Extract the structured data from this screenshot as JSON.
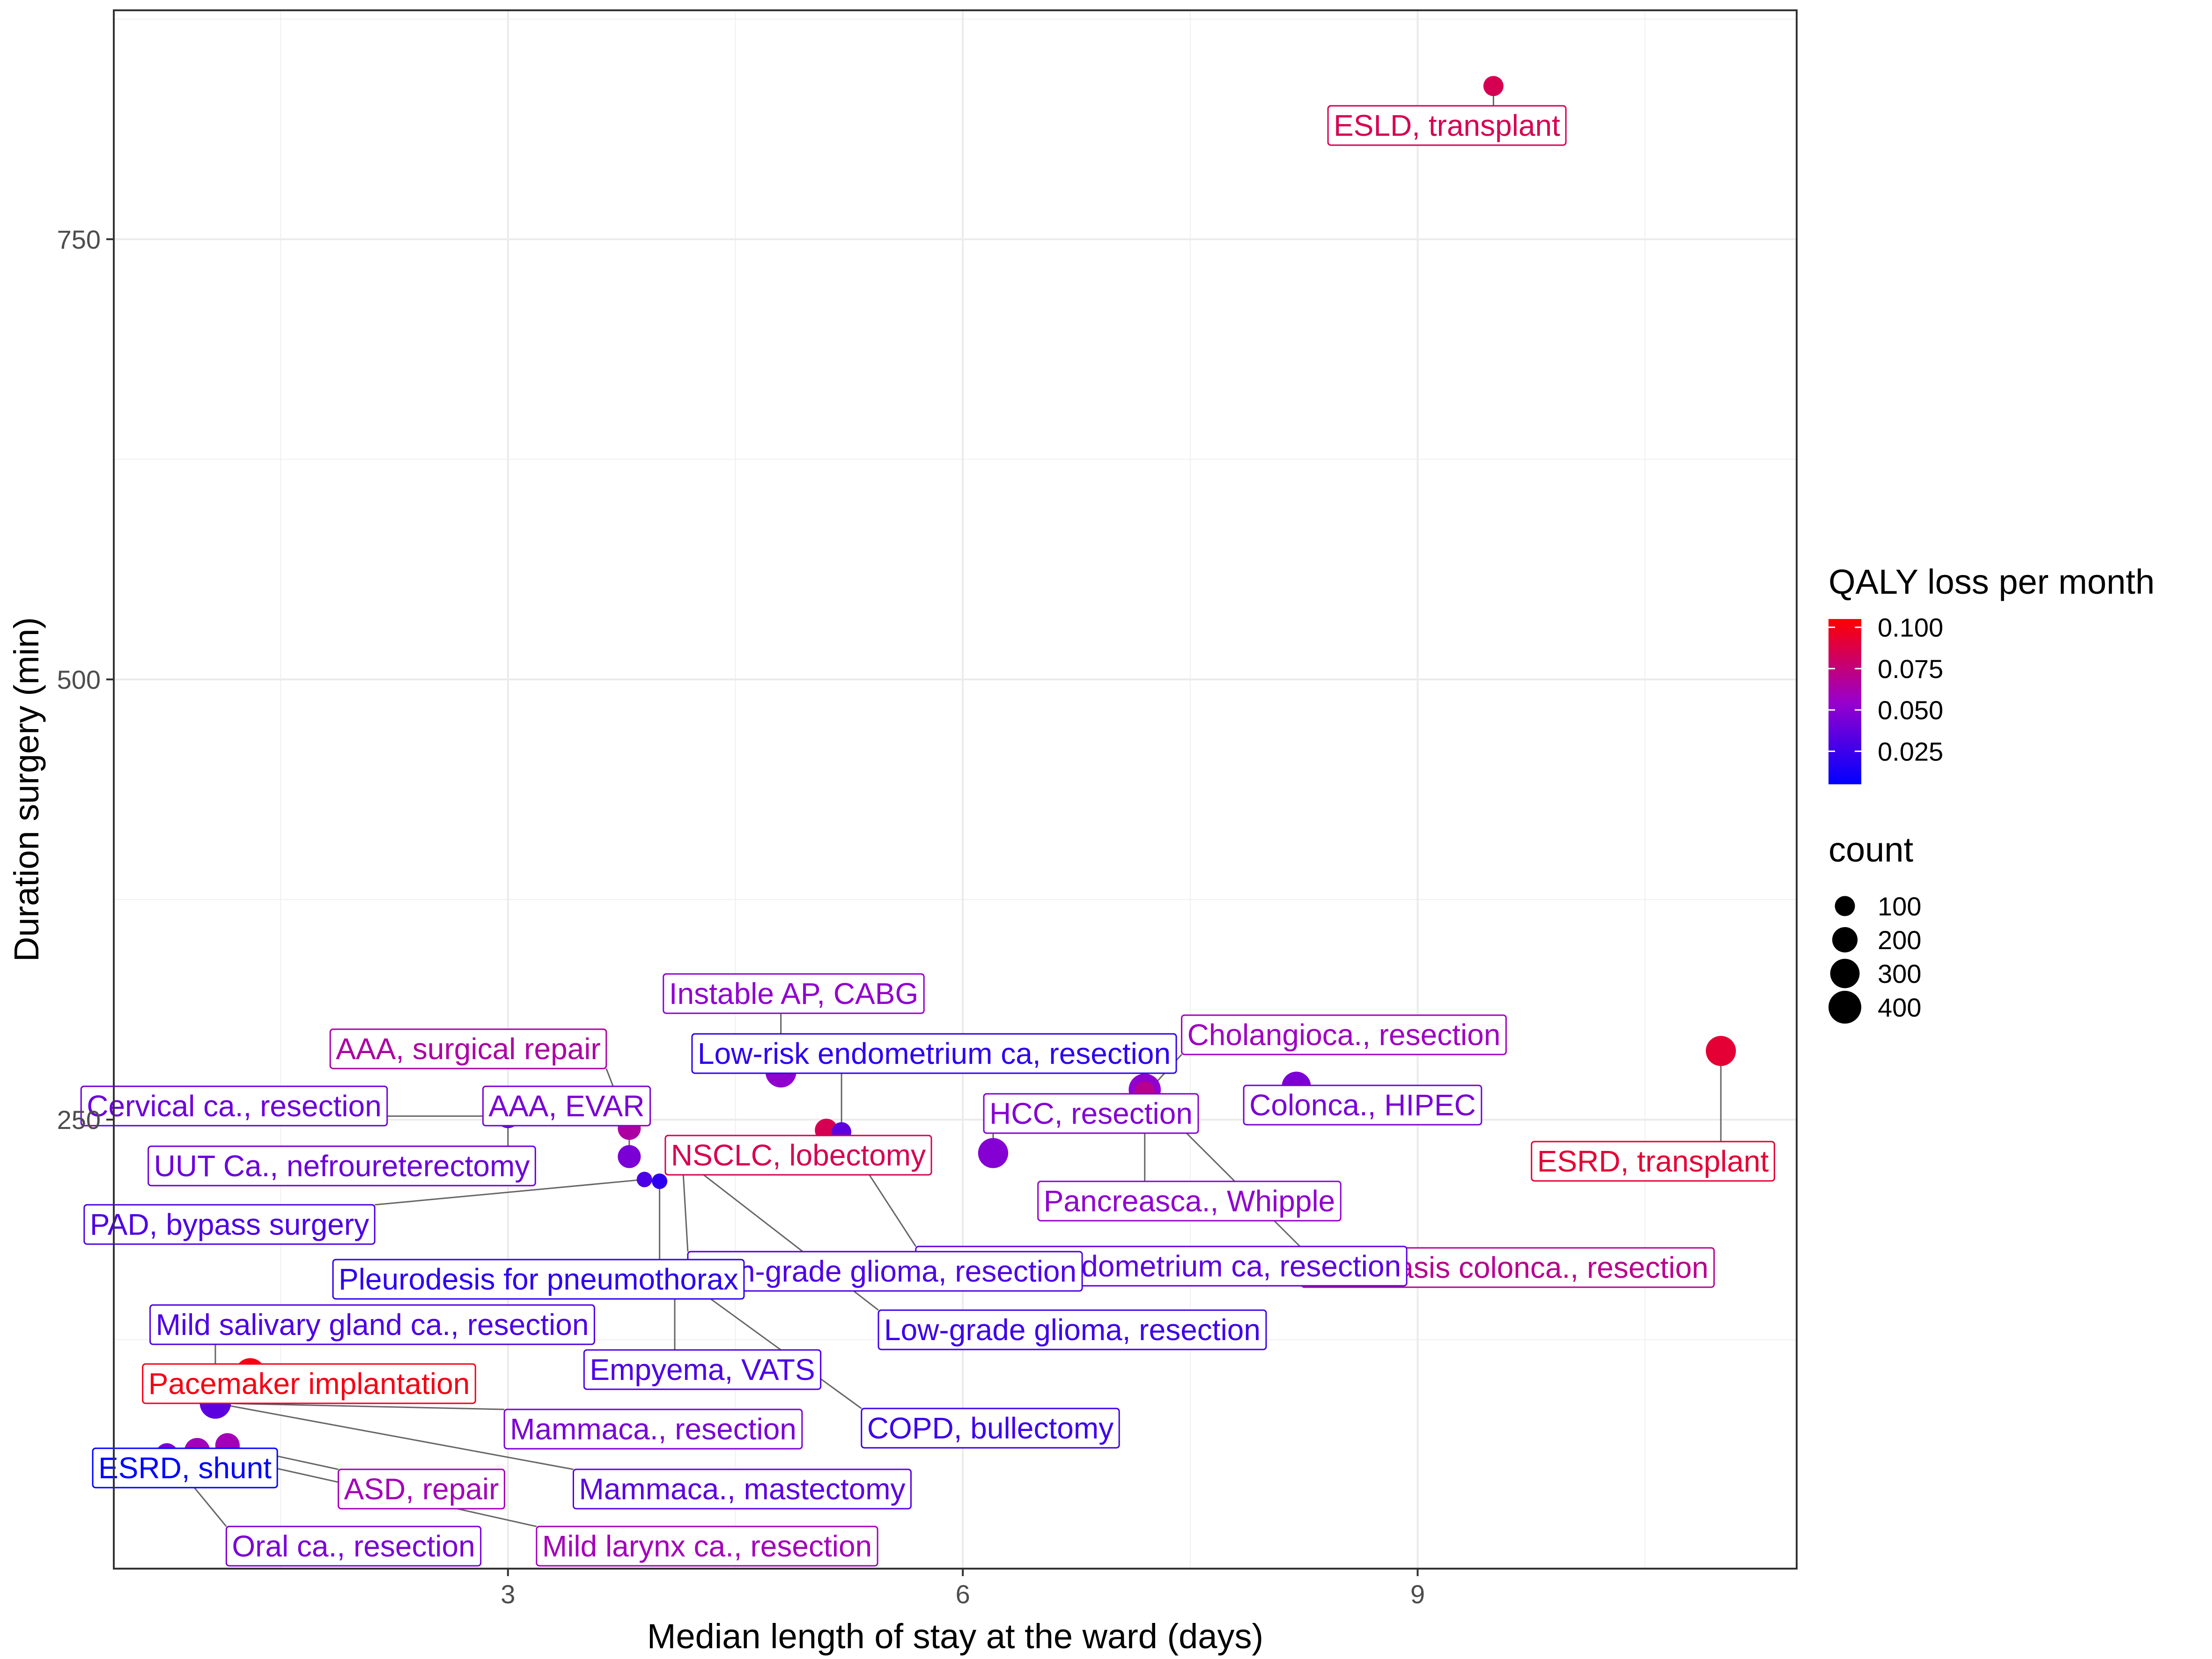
{
  "chart_data": {
    "type": "scatter",
    "xlabel": "Median length of stay at the ward (days)",
    "ylabel": "Duration surgery (min)",
    "xlim": [
      0.4,
      11.5
    ],
    "ylim": [
      -5,
      880
    ],
    "x_ticks": [
      3,
      6,
      9
    ],
    "y_ticks": [
      250,
      500,
      750
    ],
    "grid": true,
    "legend_position": "right",
    "color_legend": {
      "title": "QALY loss per month",
      "labels": [
        "0.100",
        "0.075",
        "0.050",
        "0.025"
      ],
      "values": [
        0.1,
        0.075,
        0.05,
        0.025
      ],
      "domain": [
        0.005,
        0.105
      ],
      "low_color": "#0000ff",
      "mid_color": "#9900cc",
      "high_color": "#ff0000"
    },
    "size_legend": {
      "title": "count",
      "values": [
        100,
        200,
        300,
        400
      ]
    },
    "points": [
      {
        "label": "ESLD, transplant",
        "x": 9.5,
        "y": 837,
        "qaly": 0.085,
        "count": 100
      },
      {
        "label": "ESRD, transplant",
        "x": 11.0,
        "y": 289,
        "qaly": 0.092,
        "count": 320
      },
      {
        "label": "Colonca., HIPEC",
        "x": 8.2,
        "y": 269,
        "qaly": 0.045,
        "count": 290
      },
      {
        "label": "Pancreasca., Whipple",
        "x": 7.2,
        "y": 267,
        "qaly": 0.052,
        "count": 380
      },
      {
        "label": "HCC, resection",
        "x": 6.2,
        "y": 231,
        "qaly": 0.048,
        "count": 320
      },
      {
        "label": "Cholangioca., resection",
        "x": 7.2,
        "y": 264,
        "qaly": 0.058,
        "count": 100
      },
      {
        "label": "Metastasis colonca., resection",
        "x": 7.2,
        "y": 266,
        "qaly": 0.07,
        "count": 100
      },
      {
        "label": "Instable AP, CABG",
        "x": 4.8,
        "y": 277,
        "qaly": 0.052,
        "count": 340
      },
      {
        "label": "NSCLC, lobectomy",
        "x": 5.1,
        "y": 244,
        "qaly": 0.085,
        "count": 150
      },
      {
        "label": "Low-risk endometrium ca, resection",
        "x": 5.2,
        "y": 243,
        "qaly": 0.02,
        "count": 90
      },
      {
        "label": "High-risk endometrium ca, resection",
        "x": 5.2,
        "y": 243,
        "qaly": 0.035,
        "count": 90
      },
      {
        "label": "High-grade glioma, resection",
        "x": 4.15,
        "y": 228,
        "qaly": 0.03,
        "count": 340
      },
      {
        "label": "Low-grade glioma, resection",
        "x": 4.15,
        "y": 228,
        "qaly": 0.025,
        "count": 150
      },
      {
        "label": "AAA, surgical repair",
        "x": 3.8,
        "y": 245,
        "qaly": 0.065,
        "count": 150
      },
      {
        "label": "AAA, EVAR",
        "x": 3.8,
        "y": 229,
        "qaly": 0.045,
        "count": 150
      },
      {
        "label": "Cervical ca., resection",
        "x": 3.0,
        "y": 252,
        "qaly": 0.04,
        "count": 170
      },
      {
        "label": "UUT Ca., nefroureterectomy",
        "x": 3.0,
        "y": 252,
        "qaly": 0.04,
        "count": 170
      },
      {
        "label": "PAD, bypass surgery",
        "x": 3.9,
        "y": 216,
        "qaly": 0.03,
        "count": 40
      },
      {
        "label": "Pleurodesis for pneumothorax",
        "x": 4.0,
        "y": 215,
        "qaly": 0.02,
        "count": 40
      },
      {
        "label": "Empyema, VATS",
        "x": 4.1,
        "y": 163,
        "qaly": 0.03,
        "count": 80
      },
      {
        "label": "COPD, bullectomy",
        "x": 4.1,
        "y": 163,
        "qaly": 0.025,
        "count": 80
      },
      {
        "label": "Mild salivary gland ca., resection",
        "x": 1.07,
        "y": 96,
        "qaly": 0.03,
        "count": 120
      },
      {
        "label": "Pacemaker implantation",
        "x": 1.3,
        "y": 106,
        "qaly": 0.1,
        "count": 320
      },
      {
        "label": "Mammaca., resection",
        "x": 1.07,
        "y": 89,
        "qaly": 0.045,
        "count": 350
      },
      {
        "label": "Mammaca., mastectomy",
        "x": 1.07,
        "y": 89,
        "qaly": 0.035,
        "count": 350
      },
      {
        "label": "ESRD, shunt",
        "x": 0.95,
        "y": 62,
        "qaly": 0.005,
        "count": 200
      },
      {
        "label": "ASD, repair",
        "x": 1.15,
        "y": 65,
        "qaly": 0.06,
        "count": 180
      },
      {
        "label": "Oral ca., resection",
        "x": 0.75,
        "y": 60,
        "qaly": 0.045,
        "count": 130
      },
      {
        "label": "Mild larynx ca., resection",
        "x": 0.95,
        "y": 62,
        "qaly": 0.06,
        "count": 200
      }
    ]
  }
}
